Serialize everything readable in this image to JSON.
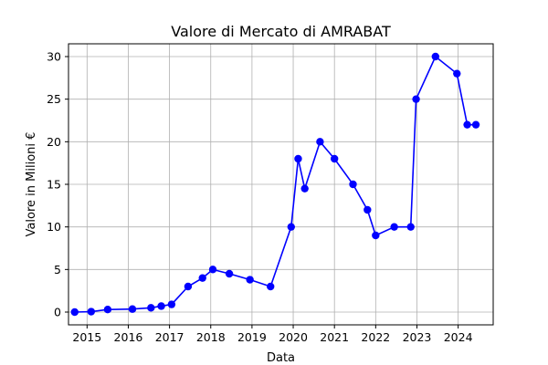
{
  "chart_data": {
    "type": "line",
    "title": "Valore di Mercato di AMRABAT",
    "xlabel": "Data",
    "ylabel": "Valore in Milioni €",
    "xlim": [
      2014.55,
      2024.85
    ],
    "ylim": [
      -1.5,
      31.5
    ],
    "x_ticks": [
      2015,
      2016,
      2017,
      2018,
      2019,
      2020,
      2021,
      2022,
      2023,
      2024
    ],
    "y_ticks": [
      0,
      5,
      10,
      15,
      20,
      25,
      30
    ],
    "grid": true,
    "color": "#0000ff",
    "series": [
      {
        "x": [
          2014.7,
          2015.1,
          2015.5,
          2016.1,
          2016.55,
          2016.8,
          2017.05,
          2017.45,
          2017.8,
          2018.05,
          2018.45,
          2018.95,
          2019.45,
          2019.95,
          2020.12,
          2020.28,
          2020.65,
          2021.0,
          2021.45,
          2021.8,
          2022.0,
          2022.45,
          2022.85,
          2022.98,
          2023.45,
          2023.97,
          2024.22,
          2024.43
        ],
        "values": [
          0,
          0.05,
          0.3,
          0.35,
          0.5,
          0.7,
          0.9,
          3.0,
          4.0,
          5.0,
          4.5,
          3.8,
          3.0,
          10.0,
          18.0,
          14.5,
          20.0,
          18.0,
          15.0,
          12.0,
          9.0,
          10.0,
          10.0,
          25.0,
          30.0,
          28.0,
          22.0,
          22.0
        ]
      }
    ]
  }
}
